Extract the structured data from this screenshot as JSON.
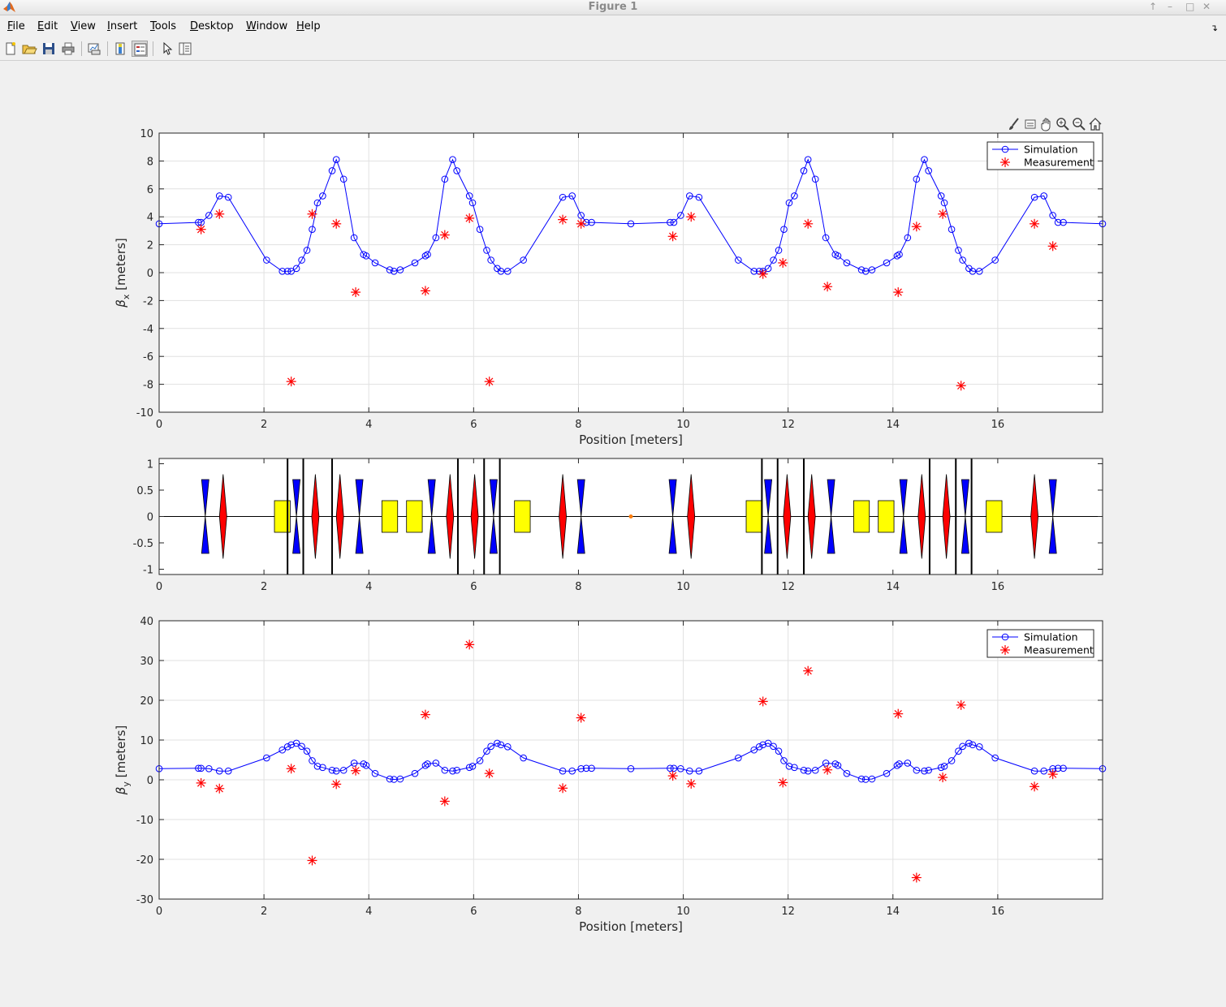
{
  "window": {
    "title": "Figure 1"
  },
  "menu": [
    "File",
    "Edit",
    "View",
    "Insert",
    "Tools",
    "Desktop",
    "Window",
    "Help"
  ],
  "menu_mnemonics": [
    "F",
    "E",
    "V",
    "I",
    "T",
    "D",
    "W",
    "H"
  ],
  "toolbar": [
    "new-figure-icon",
    "open-file-icon",
    "save-icon",
    "print-icon",
    "link-plot-icon",
    "colorbar-icon",
    "legend-icon",
    "edit-plot-icon",
    "property-inspector-icon"
  ],
  "axes_toolbar": [
    "brush-icon",
    "data-tips-icon",
    "pan-icon",
    "zoom-in-icon",
    "zoom-out-icon",
    "home-icon"
  ],
  "colors": {
    "simulation": "#0000ff",
    "measurement": "#ff0000",
    "focusing": "#ff0000",
    "defocusing": "#0000ff",
    "dipole": "#ffff00",
    "marker": "#ff7f0e"
  },
  "chart_data": [
    {
      "type": "line",
      "xlabel": "Position [meters]",
      "ylabel": "β_x [meters]",
      "ylabel_main": "β",
      "ylabel_sub": "x",
      "ylabel_rest": " [meters]",
      "xlim": [
        0,
        18
      ],
      "ylim": [
        -10,
        10
      ],
      "xticks": [
        0,
        2,
        4,
        6,
        8,
        10,
        12,
        14,
        16
      ],
      "yticks": [
        -10,
        -8,
        -6,
        -4,
        -2,
        0,
        2,
        4,
        6,
        8,
        10
      ],
      "grid": true,
      "legend": "top-right",
      "series": [
        {
          "name": "Simulation",
          "style": "line-circle",
          "x": [
            0.0,
            0.75,
            0.8,
            0.95,
            1.15,
            1.32,
            2.05,
            2.35,
            2.45,
            2.52,
            2.62,
            2.72,
            2.82,
            2.92,
            3.02,
            3.12,
            3.3,
            3.38,
            3.52,
            3.72,
            3.9,
            3.95,
            4.12,
            4.4,
            4.48,
            4.6,
            4.88,
            5.08,
            5.12,
            5.28,
            5.45,
            5.6,
            5.68,
            5.92,
            5.98,
            6.12,
            6.25,
            6.33,
            6.45,
            6.52,
            6.65,
            6.95,
            7.7,
            7.88,
            8.05,
            8.15,
            8.25,
            9.0,
            9.75,
            9.82,
            9.95,
            10.12,
            10.3,
            11.05,
            11.35,
            11.45,
            11.52,
            11.62,
            11.72,
            11.82,
            11.92,
            12.02,
            12.12,
            12.3,
            12.38,
            12.52,
            12.72,
            12.9,
            12.95,
            13.12,
            13.4,
            13.48,
            13.6,
            13.88,
            14.08,
            14.12,
            14.28,
            14.45,
            14.6,
            14.68,
            14.92,
            14.98,
            15.12,
            15.25,
            15.33,
            15.45,
            15.52,
            15.65,
            15.95,
            16.7,
            16.88,
            17.05,
            17.15,
            17.25,
            18.0
          ],
          "y": [
            3.5,
            3.6,
            3.6,
            4.1,
            5.5,
            5.4,
            0.9,
            0.1,
            0.1,
            0.1,
            0.3,
            0.9,
            1.6,
            3.1,
            5.0,
            5.5,
            7.3,
            8.1,
            6.7,
            2.5,
            1.3,
            1.2,
            0.7,
            0.2,
            0.1,
            0.2,
            0.7,
            1.2,
            1.3,
            2.5,
            6.7,
            8.1,
            7.3,
            5.5,
            5.0,
            3.1,
            1.6,
            0.9,
            0.3,
            0.1,
            0.1,
            0.9,
            5.4,
            5.5,
            4.1,
            3.6,
            3.6,
            3.5,
            3.6,
            3.6,
            4.1,
            5.5,
            5.4,
            0.9,
            0.1,
            0.1,
            0.1,
            0.3,
            0.9,
            1.6,
            3.1,
            5.0,
            5.5,
            7.3,
            8.1,
            6.7,
            2.5,
            1.3,
            1.2,
            0.7,
            0.2,
            0.1,
            0.2,
            0.7,
            1.2,
            1.3,
            2.5,
            6.7,
            8.1,
            7.3,
            5.5,
            5.0,
            3.1,
            1.6,
            0.9,
            0.3,
            0.1,
            0.1,
            0.9,
            5.4,
            5.5,
            4.1,
            3.6,
            3.6,
            3.5
          ]
        },
        {
          "name": "Measurement",
          "style": "star",
          "x": [
            0.8,
            1.15,
            2.52,
            2.92,
            3.38,
            3.75,
            5.08,
            5.45,
            5.92,
            6.3,
            7.7,
            8.05,
            9.8,
            10.15,
            11.52,
            11.9,
            12.38,
            12.75,
            14.1,
            14.45,
            14.95,
            15.3,
            16.7,
            17.05
          ],
          "y": [
            3.1,
            4.2,
            -7.8,
            4.2,
            3.5,
            -1.4,
            -1.3,
            2.7,
            3.9,
            -7.8,
            3.8,
            3.5,
            2.6,
            4.0,
            -0.1,
            0.7,
            3.5,
            -1.0,
            -1.4,
            3.3,
            4.2,
            -8.1,
            3.5,
            1.9
          ]
        }
      ]
    },
    {
      "type": "lattice",
      "xlim": [
        0,
        18
      ],
      "ylim": [
        -1.1,
        1.1
      ],
      "xticks": [
        0,
        2,
        4,
        6,
        8,
        10,
        12,
        14,
        16
      ],
      "yticks": [
        -1,
        -0.5,
        0,
        0.5,
        1
      ],
      "ytick_labels": [
        "-1",
        "-0.5",
        "0",
        "0.5",
        "1"
      ],
      "defocusing_quads": [
        0.88,
        2.62,
        3.82,
        5.2,
        6.38,
        8.05,
        9.8,
        11.62,
        12.82,
        14.2,
        15.38,
        17.05
      ],
      "focusing_quads": [
        1.22,
        2.98,
        3.45,
        5.55,
        6.02,
        7.7,
        10.15,
        11.98,
        12.45,
        14.55,
        15.02,
        16.7
      ],
      "dipoles": [
        2.2,
        4.25,
        4.72,
        6.78,
        11.2,
        13.25,
        13.72,
        15.78
      ],
      "vertical_lines": [
        2.45,
        2.75,
        3.3,
        5.7,
        6.2,
        6.5,
        11.5,
        11.8,
        12.3,
        14.7,
        15.2,
        15.5
      ],
      "markers": [
        9.0
      ]
    },
    {
      "type": "line",
      "xlabel": "Position [meters]",
      "ylabel": "β_y [meters]",
      "ylabel_main": "β",
      "ylabel_sub": "y",
      "ylabel_rest": " [meters]",
      "xlim": [
        0,
        18
      ],
      "ylim": [
        -30,
        40
      ],
      "xticks": [
        0,
        2,
        4,
        6,
        8,
        10,
        12,
        14,
        16
      ],
      "yticks": [
        -30,
        -20,
        -10,
        0,
        10,
        20,
        30,
        40
      ],
      "grid": true,
      "legend": "top-right",
      "series": [
        {
          "name": "Simulation",
          "style": "line-circle",
          "x": [
            0.0,
            0.75,
            0.8,
            0.95,
            1.15,
            1.32,
            2.05,
            2.35,
            2.45,
            2.52,
            2.62,
            2.72,
            2.82,
            2.92,
            3.02,
            3.12,
            3.3,
            3.38,
            3.52,
            3.72,
            3.9,
            3.95,
            4.12,
            4.4,
            4.48,
            4.6,
            4.88,
            5.08,
            5.12,
            5.28,
            5.45,
            5.6,
            5.68,
            5.92,
            5.98,
            6.12,
            6.25,
            6.33,
            6.45,
            6.52,
            6.65,
            6.95,
            7.7,
            7.88,
            8.05,
            8.15,
            8.25,
            9.0,
            9.75,
            9.82,
            9.95,
            10.12,
            10.3,
            11.05,
            11.35,
            11.45,
            11.52,
            11.62,
            11.72,
            11.82,
            11.92,
            12.02,
            12.12,
            12.3,
            12.38,
            12.52,
            12.72,
            12.9,
            12.95,
            13.12,
            13.4,
            13.48,
            13.6,
            13.88,
            14.08,
            14.12,
            14.28,
            14.45,
            14.6,
            14.68,
            14.92,
            14.98,
            15.12,
            15.25,
            15.33,
            15.45,
            15.52,
            15.65,
            15.95,
            16.7,
            16.88,
            17.05,
            17.15,
            17.25,
            18.0
          ],
          "y": [
            2.8,
            2.9,
            2.9,
            2.8,
            2.2,
            2.2,
            5.5,
            7.5,
            8.3,
            8.8,
            9.2,
            8.4,
            7.2,
            4.8,
            3.4,
            3.1,
            2.4,
            2.2,
            2.4,
            4.2,
            4.0,
            3.6,
            1.6,
            0.2,
            0.1,
            0.2,
            1.6,
            3.6,
            4.0,
            4.2,
            2.4,
            2.2,
            2.4,
            3.1,
            3.4,
            4.8,
            7.2,
            8.4,
            9.2,
            8.8,
            8.3,
            5.5,
            2.2,
            2.2,
            2.8,
            2.9,
            2.9,
            2.8,
            2.9,
            2.9,
            2.8,
            2.2,
            2.2,
            5.5,
            7.5,
            8.3,
            8.8,
            9.2,
            8.4,
            7.2,
            4.8,
            3.4,
            3.1,
            2.4,
            2.2,
            2.4,
            4.2,
            4.0,
            3.6,
            1.6,
            0.2,
            0.1,
            0.2,
            1.6,
            3.6,
            4.0,
            4.2,
            2.4,
            2.2,
            2.4,
            3.1,
            3.4,
            4.8,
            7.2,
            8.4,
            9.2,
            8.8,
            8.3,
            5.5,
            2.2,
            2.2,
            2.8,
            2.9,
            2.9,
            2.8
          ]
        },
        {
          "name": "Measurement",
          "style": "star",
          "x": [
            0.8,
            1.15,
            2.52,
            2.92,
            3.38,
            3.75,
            5.08,
            5.45,
            5.92,
            6.3,
            7.7,
            8.05,
            9.8,
            10.15,
            11.52,
            11.9,
            12.38,
            12.75,
            14.1,
            14.45,
            14.95,
            15.3,
            16.7,
            17.05
          ],
          "y": [
            -0.8,
            -2.2,
            2.8,
            -20.3,
            -1.1,
            2.3,
            16.4,
            -5.4,
            34.0,
            1.6,
            -2.1,
            15.6,
            1.0,
            -1.0,
            19.7,
            -0.7,
            27.4,
            2.5,
            16.6,
            -24.6,
            0.6,
            18.8,
            -1.7,
            1.4
          ]
        }
      ]
    }
  ]
}
